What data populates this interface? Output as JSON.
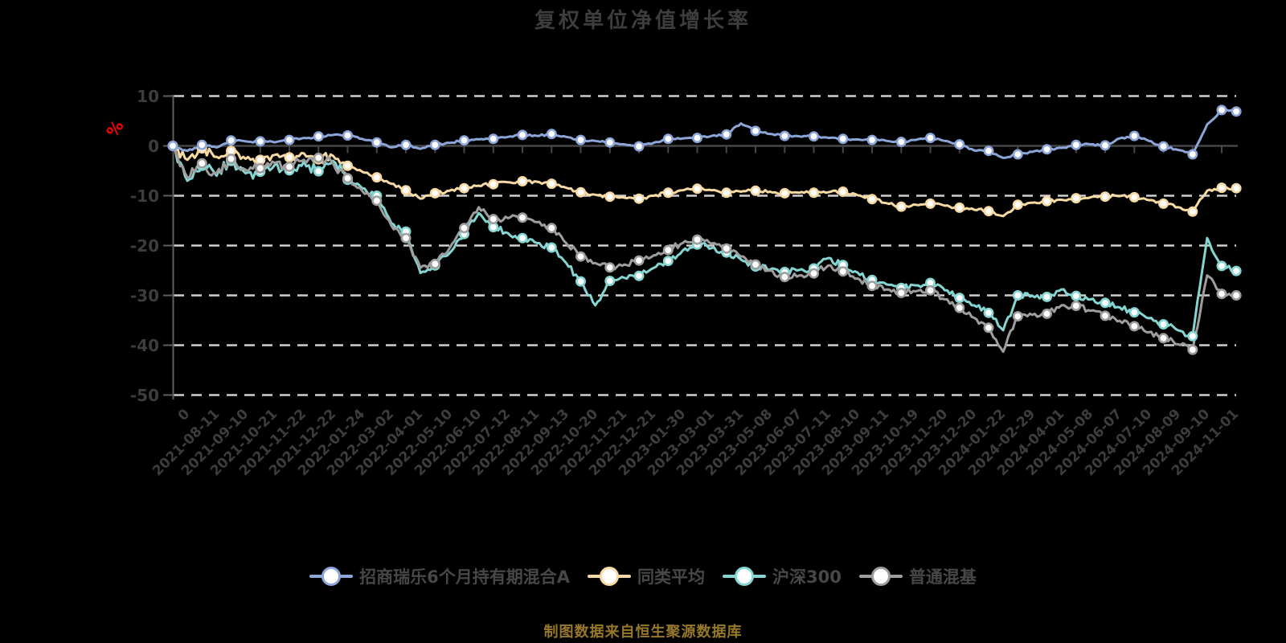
{
  "title": "复权单位净值增长率",
  "caption": "制图数据来自恒生聚源数据库",
  "palette": {
    "background": "#000000",
    "grid_dashed": "#cfcfcf",
    "axis_line": "#5f5f5f",
    "zero_line": "#464646",
    "title_text": "#3d3d3d",
    "axis_label_text": "#3d3d3d",
    "legend_text": "#474747",
    "caption_text": "#97782a",
    "unit_label_text": "#ff0000",
    "marker_fill": "#ffffff"
  },
  "chart_data": {
    "type": "line",
    "title": "复权单位净值增长率",
    "ylabel": "%",
    "ylim": [
      -50,
      10
    ],
    "yticks": [
      10,
      0,
      -10,
      -20,
      -30,
      -40,
      -50
    ],
    "grid": "horizontal-dashed",
    "legend_position": "bottom",
    "x_labels": [
      "0",
      "2021-08-11",
      "2021-09-10",
      "2021-10-21",
      "2021-11-22",
      "2021-12-22",
      "2022-01-24",
      "2022-03-02",
      "2022-04-01",
      "2022-05-10",
      "2022-06-10",
      "2022-07-12",
      "2022-08-11",
      "2022-09-13",
      "2022-10-20",
      "2022-11-21",
      "2022-12-21",
      "2023-01-30",
      "2023-03-01",
      "2023-03-31",
      "2023-05-08",
      "2023-06-07",
      "2023-07-11",
      "2023-08-10",
      "2023-09-11",
      "2023-10-19",
      "2023-11-20",
      "2023-12-20",
      "2024-01-22",
      "2024-02-29",
      "2024-04-01",
      "2024-05-08",
      "2024-06-07",
      "2024-07-10",
      "2024-08-09",
      "2024-09-10",
      "2024-11-01"
    ],
    "sampling": "values sampled at each x label tick and at each midpoint between ticks (2 per interval), plus one final half-step point after the last tick",
    "series": [
      {
        "name": "招商瑞乐6个月持有期混合A",
        "color": "#8ca6d9",
        "jitter": 0.22,
        "jitter_early_mult": 1.2,
        "values": [
          0,
          -1.0,
          0.2,
          -0.3,
          1.1,
          0.9,
          0.9,
          0.7,
          1.2,
          1.6,
          1.9,
          2.2,
          2.1,
          1.4,
          0.7,
          -0.3,
          0.2,
          -0.6,
          0.2,
          0.6,
          1.1,
          1.3,
          1.4,
          1.8,
          2.2,
          2.0,
          2.4,
          1.8,
          1.2,
          1.0,
          0.7,
          0.3,
          -0.1,
          0.6,
          1.4,
          1.5,
          1.6,
          2.0,
          2.3,
          4.5,
          3.0,
          2.4,
          2.0,
          1.9,
          1.9,
          1.6,
          1.4,
          1.3,
          1.2,
          1.0,
          0.8,
          1.2,
          1.6,
          1.0,
          0.3,
          -0.9,
          -1.0,
          -2.4,
          -1.7,
          -1.2,
          -0.7,
          -0.4,
          0.2,
          0.3,
          0.1,
          1.5,
          2.0,
          1.0,
          -0.1,
          -0.8,
          -1.7,
          4.3,
          7.2,
          6.9
        ]
      },
      {
        "name": "同类平均",
        "color": "#f7d9a3",
        "jitter": 0.35,
        "jitter_early_mult": 2.8,
        "values": [
          0,
          -2.8,
          -0.5,
          -2.2,
          -1.0,
          -2.6,
          -2.8,
          -1.8,
          -2.3,
          -1.5,
          -2.7,
          -2.0,
          -4.0,
          -5.2,
          -6.3,
          -7.6,
          -8.9,
          -10.6,
          -9.5,
          -9.0,
          -8.5,
          -8.0,
          -7.7,
          -7.3,
          -7.1,
          -7.2,
          -7.6,
          -8.4,
          -9.3,
          -9.8,
          -10.2,
          -10.4,
          -10.6,
          -10.0,
          -9.4,
          -8.9,
          -8.6,
          -8.9,
          -9.4,
          -9.2,
          -9.0,
          -9.2,
          -9.5,
          -9.4,
          -9.4,
          -9.3,
          -9.2,
          -9.9,
          -10.7,
          -11.5,
          -12.2,
          -11.8,
          -11.6,
          -12.0,
          -12.4,
          -12.8,
          -13.1,
          -14.1,
          -11.8,
          -11.4,
          -11.1,
          -10.8,
          -10.5,
          -10.3,
          -10.2,
          -10.1,
          -10.3,
          -10.9,
          -11.6,
          -12.3,
          -13.2,
          -9.0,
          -8.4,
          -8.5
        ]
      },
      {
        "name": "沪深300",
        "color": "#85d6d3",
        "jitter": 0.65,
        "jitter_early_mult": 2.0,
        "values": [
          0,
          -7.0,
          -4.0,
          -6.0,
          -3.0,
          -5.5,
          -5.2,
          -3.8,
          -4.9,
          -3.2,
          -5.1,
          -3.0,
          -6.8,
          -8.5,
          -10.0,
          -15.5,
          -17.2,
          -25.5,
          -24.0,
          -21.5,
          -17.7,
          -13.5,
          -16.3,
          -17.5,
          -18.5,
          -19.5,
          -20.4,
          -23.5,
          -27.2,
          -32.0,
          -27.1,
          -26.5,
          -26.1,
          -24.5,
          -23.1,
          -21.0,
          -19.8,
          -20.5,
          -21.4,
          -22.8,
          -24.2,
          -24.8,
          -25.3,
          -24.9,
          -24.6,
          -22.5,
          -23.9,
          -25.4,
          -26.9,
          -27.8,
          -28.5,
          -28.0,
          -27.5,
          -29.0,
          -30.5,
          -32.0,
          -33.5,
          -37.0,
          -30.0,
          -30.1,
          -30.3,
          -28.8,
          -30.1,
          -30.8,
          -31.5,
          -32.4,
          -33.4,
          -34.6,
          -35.8,
          -37.0,
          -38.2,
          -18.5,
          -24.1,
          -25.1
        ]
      },
      {
        "name": "普通混基",
        "color": "#9e9e9e",
        "jitter": 0.65,
        "jitter_early_mult": 2.0,
        "values": [
          0,
          -6.3,
          -3.5,
          -5.5,
          -2.6,
          -4.8,
          -4.5,
          -3.4,
          -4.2,
          -2.8,
          -2.4,
          -3.5,
          -6.5,
          -9.0,
          -11.0,
          -16.0,
          -18.5,
          -24.5,
          -23.7,
          -20.5,
          -16.5,
          -12.3,
          -14.7,
          -14.5,
          -14.4,
          -15.3,
          -16.5,
          -19.5,
          -22.2,
          -23.5,
          -24.4,
          -23.8,
          -23.0,
          -22.0,
          -20.9,
          -19.5,
          -18.8,
          -19.6,
          -20.6,
          -22.2,
          -23.8,
          -25.0,
          -26.3,
          -26.0,
          -25.6,
          -24.0,
          -25.2,
          -26.6,
          -28.1,
          -28.8,
          -29.5,
          -29.2,
          -29.0,
          -30.8,
          -32.5,
          -34.5,
          -36.5,
          -41.3,
          -34.2,
          -33.9,
          -33.7,
          -32.0,
          -32.1,
          -33.1,
          -34.1,
          -35.1,
          -36.2,
          -37.4,
          -38.6,
          -39.8,
          -40.9,
          -26.0,
          -29.7,
          -30.0
        ]
      }
    ]
  }
}
